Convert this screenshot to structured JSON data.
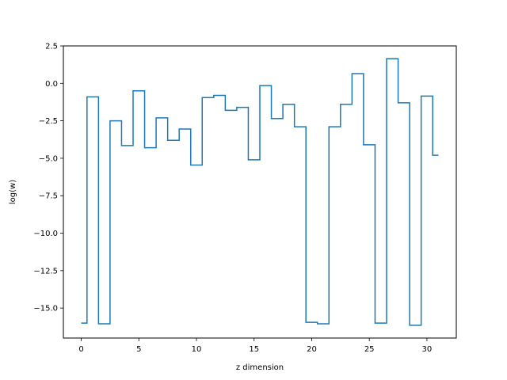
{
  "chart_data": {
    "type": "line",
    "drawstyle": "steps-mid",
    "title": "",
    "xlabel": "z dimension",
    "ylabel": "log(w)",
    "xlim": [
      -1.55,
      32.55
    ],
    "ylim": [
      -17.0,
      2.5
    ],
    "xticks": [
      0,
      5,
      10,
      15,
      20,
      25,
      30
    ],
    "yticks": [
      2.5,
      0.0,
      -2.5,
      -5.0,
      -7.5,
      -10.0,
      -12.5,
      -15.0
    ],
    "xtick_labels": [
      "0",
      "5",
      "10",
      "15",
      "20",
      "25",
      "30"
    ],
    "ytick_labels": [
      "2.5",
      "0.0",
      "−2.5",
      "−5.0",
      "−7.5",
      "−10.0",
      "−12.5",
      "−15.0"
    ],
    "grid": false,
    "series": [
      {
        "color": "#1f77b4",
        "x": [
          0,
          1,
          2,
          3,
          4,
          5,
          6,
          7,
          8,
          9,
          10,
          11,
          12,
          13,
          14,
          15,
          16,
          17,
          18,
          19,
          20,
          21,
          22,
          23,
          24,
          25,
          26,
          27,
          28,
          29,
          30,
          31
        ],
        "y": [
          -16.0,
          -0.9,
          -16.05,
          -2.5,
          -4.15,
          -0.5,
          -4.3,
          -2.3,
          -3.8,
          -3.05,
          -5.45,
          -0.95,
          -0.8,
          -1.8,
          -1.6,
          -5.1,
          -0.15,
          -2.35,
          -1.4,
          -2.9,
          -15.95,
          -16.05,
          -2.9,
          -1.4,
          0.65,
          -4.1,
          -16.0,
          1.65,
          -1.3,
          -16.15,
          -0.85,
          -4.8
        ]
      }
    ]
  }
}
